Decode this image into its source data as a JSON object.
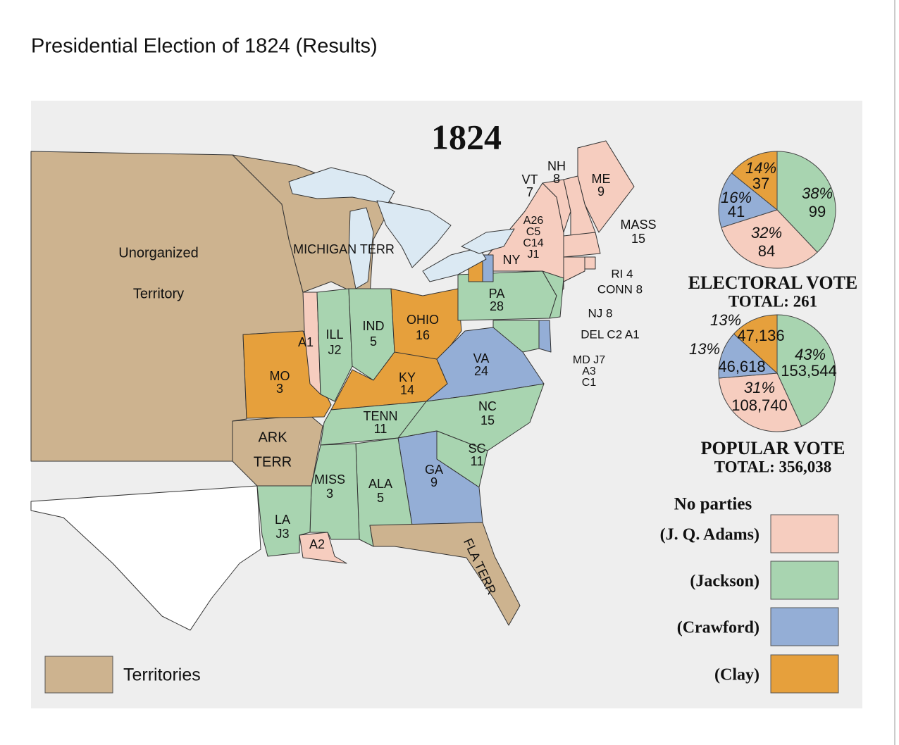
{
  "header": {
    "title": "Presidential Election of 1824 (Results)"
  },
  "map": {
    "title": "1824",
    "labels": [
      {
        "lines": [
          "Unorganized",
          "Territory"
        ]
      },
      {
        "lines": [
          "MICHIGAN TERR"
        ]
      },
      {
        "lines": [
          "ARK",
          "TERR"
        ]
      },
      {
        "lines": [
          "MO",
          "3"
        ]
      },
      {
        "lines": [
          "A1"
        ]
      },
      {
        "lines": [
          "ILL",
          "J2"
        ]
      },
      {
        "lines": [
          "IND",
          "5"
        ]
      },
      {
        "lines": [
          "OHIO",
          "16"
        ]
      },
      {
        "lines": [
          "KY",
          "14"
        ]
      },
      {
        "lines": [
          "VA",
          "24"
        ]
      },
      {
        "lines": [
          "PA",
          "28"
        ]
      },
      {
        "lines": [
          "TENN",
          "11"
        ]
      },
      {
        "lines": [
          "NC",
          "15"
        ]
      },
      {
        "lines": [
          "SC",
          "11"
        ]
      },
      {
        "lines": [
          "GA",
          "9"
        ]
      },
      {
        "lines": [
          "MISS",
          "3"
        ]
      },
      {
        "lines": [
          "ALA",
          "5"
        ]
      },
      {
        "lines": [
          "LA",
          "J3"
        ]
      },
      {
        "lines": [
          "A2"
        ]
      },
      {
        "lines": [
          "FLA TERR"
        ]
      },
      {
        "lines": [
          "VT",
          "7"
        ]
      },
      {
        "lines": [
          "NH",
          "8"
        ]
      },
      {
        "lines": [
          "ME",
          "9"
        ]
      },
      {
        "lines": [
          "A26",
          "C5",
          "C14",
          "J1"
        ]
      },
      {
        "lines": [
          "NY"
        ]
      },
      {
        "lines": [
          "MASS",
          "15"
        ]
      },
      {
        "lines": [
          "RI 4"
        ]
      },
      {
        "lines": [
          "CONN 8"
        ]
      },
      {
        "lines": [
          "NJ 8"
        ]
      },
      {
        "lines": [
          "DEL C2 A1"
        ]
      },
      {
        "lines": [
          "MD J7",
          "A3",
          "C1"
        ]
      }
    ]
  },
  "electoral_vote": {
    "heading": "ELECTORAL  VOTE",
    "total_text": "TOTAL:  261",
    "slices": [
      {
        "percent": "38%",
        "votes": 99,
        "color": "#a8d4b0"
      },
      {
        "percent": "32%",
        "votes": 84,
        "color": "#f6cdbf"
      },
      {
        "percent": "16%",
        "votes": 41,
        "color": "#94aed6"
      },
      {
        "percent": "14%",
        "votes": 37,
        "color": "#e6a03c"
      }
    ]
  },
  "popular_vote": {
    "heading": "POPULAR  VOTE",
    "total_text": "TOTAL:  356,038",
    "slices": [
      {
        "percent": "43%",
        "votes": 153544,
        "votes_label": "153,544",
        "color": "#a8d4b0"
      },
      {
        "percent": "31%",
        "votes": 108740,
        "votes_label": "108,740",
        "color": "#f6cdbf"
      },
      {
        "percent": "13%",
        "votes": 46618,
        "votes_label": "46,618",
        "color": "#94aed6"
      },
      {
        "percent": "13%",
        "votes": 47136,
        "votes_label": "47,136",
        "color": "#e6a03c"
      }
    ]
  },
  "legend": {
    "heading": "No parties",
    "items": [
      {
        "label": "(J. Q. Adams)",
        "color": "#f6cdbf"
      },
      {
        "label": "(Jackson)",
        "color": "#a8d4b0"
      },
      {
        "label": "(Crawford)",
        "color": "#94aed6"
      },
      {
        "label": "(Clay)",
        "color": "#e6a03c"
      }
    ],
    "territories": {
      "label": "Territories",
      "color": "#cdb38f"
    }
  }
}
